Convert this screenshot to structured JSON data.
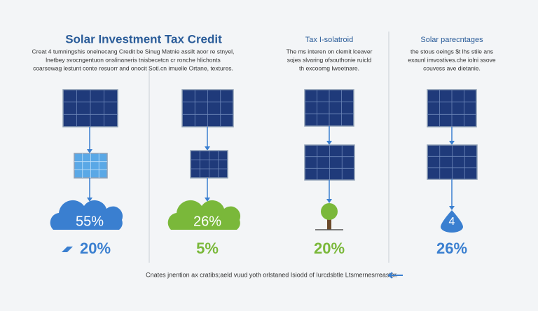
{
  "header": {
    "title": "Solar Investment Tax Credit",
    "description": [
      "Creat 4 tumningshis onelnecang Credit be Sinug Matnie assilt aoor re stnyel,",
      "lnetbey svocngentuon onslinaneris tnisbecetcn cr ronche hlichonts",
      "coarsewag lestunt conte resuorr and onocit Sotl.cn imuelle Ortane, textures."
    ]
  },
  "columns": [
    {
      "title": null,
      "description": [],
      "icon_value": "55%",
      "value": "20%"
    },
    {
      "title": null,
      "description": [],
      "icon_value": "26%",
      "value": "5%"
    },
    {
      "title": "Tax I-solatroid",
      "description": [
        "The ms interen on clemit lceaver",
        "sojes slvaring ofsouthonie ruicld",
        "th excoomg Iweetnare."
      ],
      "icon_value": null,
      "value": "20%"
    },
    {
      "title": "Solar parecntages",
      "description": [
        "the stous oeings $t lhs stile ans",
        "exaunl imvostives.che iolni ssove",
        "couvess ave dietanie."
      ],
      "icon_value": "4",
      "value": "26%"
    }
  ],
  "footer": "Cnates jnention ax cratibs;aeld vuud yoth orlstaned Isiodd of Iurcdsbtle Ltsmernesrreaster."
}
